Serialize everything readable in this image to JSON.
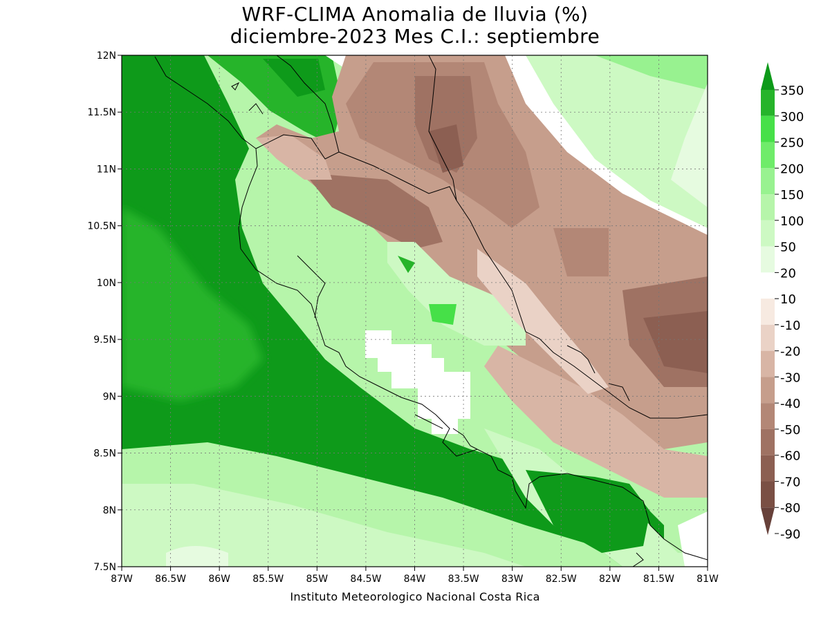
{
  "title_line1": "WRF-CLIMA Anomalia de lluvia (%)",
  "title_line2": "diciembre-2023 Mes C.I.: septiembre",
  "credit": "Instituto Meteorologico Nacional Costa Rica",
  "map": {
    "lon_range": [
      -87,
      -81
    ],
    "lat_range": [
      7.5,
      12
    ],
    "x_ticks": [
      {
        "lon": -87,
        "label": "87W"
      },
      {
        "lon": -86.5,
        "label": "86.5W"
      },
      {
        "lon": -86,
        "label": "86W"
      },
      {
        "lon": -85.5,
        "label": "85.5W"
      },
      {
        "lon": -85,
        "label": "85W"
      },
      {
        "lon": -84.5,
        "label": "84.5W"
      },
      {
        "lon": -84,
        "label": "84W"
      },
      {
        "lon": -83.5,
        "label": "83.5W"
      },
      {
        "lon": -83,
        "label": "83W"
      },
      {
        "lon": -82.5,
        "label": "82.5W"
      },
      {
        "lon": -82,
        "label": "82W"
      },
      {
        "lon": -81.5,
        "label": "81.5W"
      },
      {
        "lon": -81,
        "label": "81W"
      }
    ],
    "y_ticks": [
      {
        "lat": 12,
        "label": "12N"
      },
      {
        "lat": 11.5,
        "label": "11.5N"
      },
      {
        "lat": 11,
        "label": "11N"
      },
      {
        "lat": 10.5,
        "label": "10.5N"
      },
      {
        "lat": 10,
        "label": "10N"
      },
      {
        "lat": 9.5,
        "label": "9.5N"
      },
      {
        "lat": 9,
        "label": "9N"
      },
      {
        "lat": 8.5,
        "label": "8.5N"
      },
      {
        "lat": 8,
        "label": "8N"
      },
      {
        "lat": 7.5,
        "label": "7.5N"
      }
    ],
    "grid": true
  },
  "colorbar": {
    "labels": [
      "350",
      "300",
      "250",
      "200",
      "150",
      "100",
      "50",
      "20",
      "10",
      "-10",
      "-20",
      "-30",
      "-40",
      "-50",
      "-60",
      "-70",
      "-80",
      "-90"
    ],
    "colors": [
      "#0e9a1a",
      "#26b42a",
      "#46e048",
      "#6fec6a",
      "#98f290",
      "#b6f5aa",
      "#cdf9c3",
      "#e6fbe0",
      "#ffffff",
      "#f7eae1",
      "#ead2c6",
      "#d8b5a5",
      "#c69e8c",
      "#b38776",
      "#9f7263",
      "#8c5f52",
      "#7a4f44",
      "#67413a"
    ]
  }
}
